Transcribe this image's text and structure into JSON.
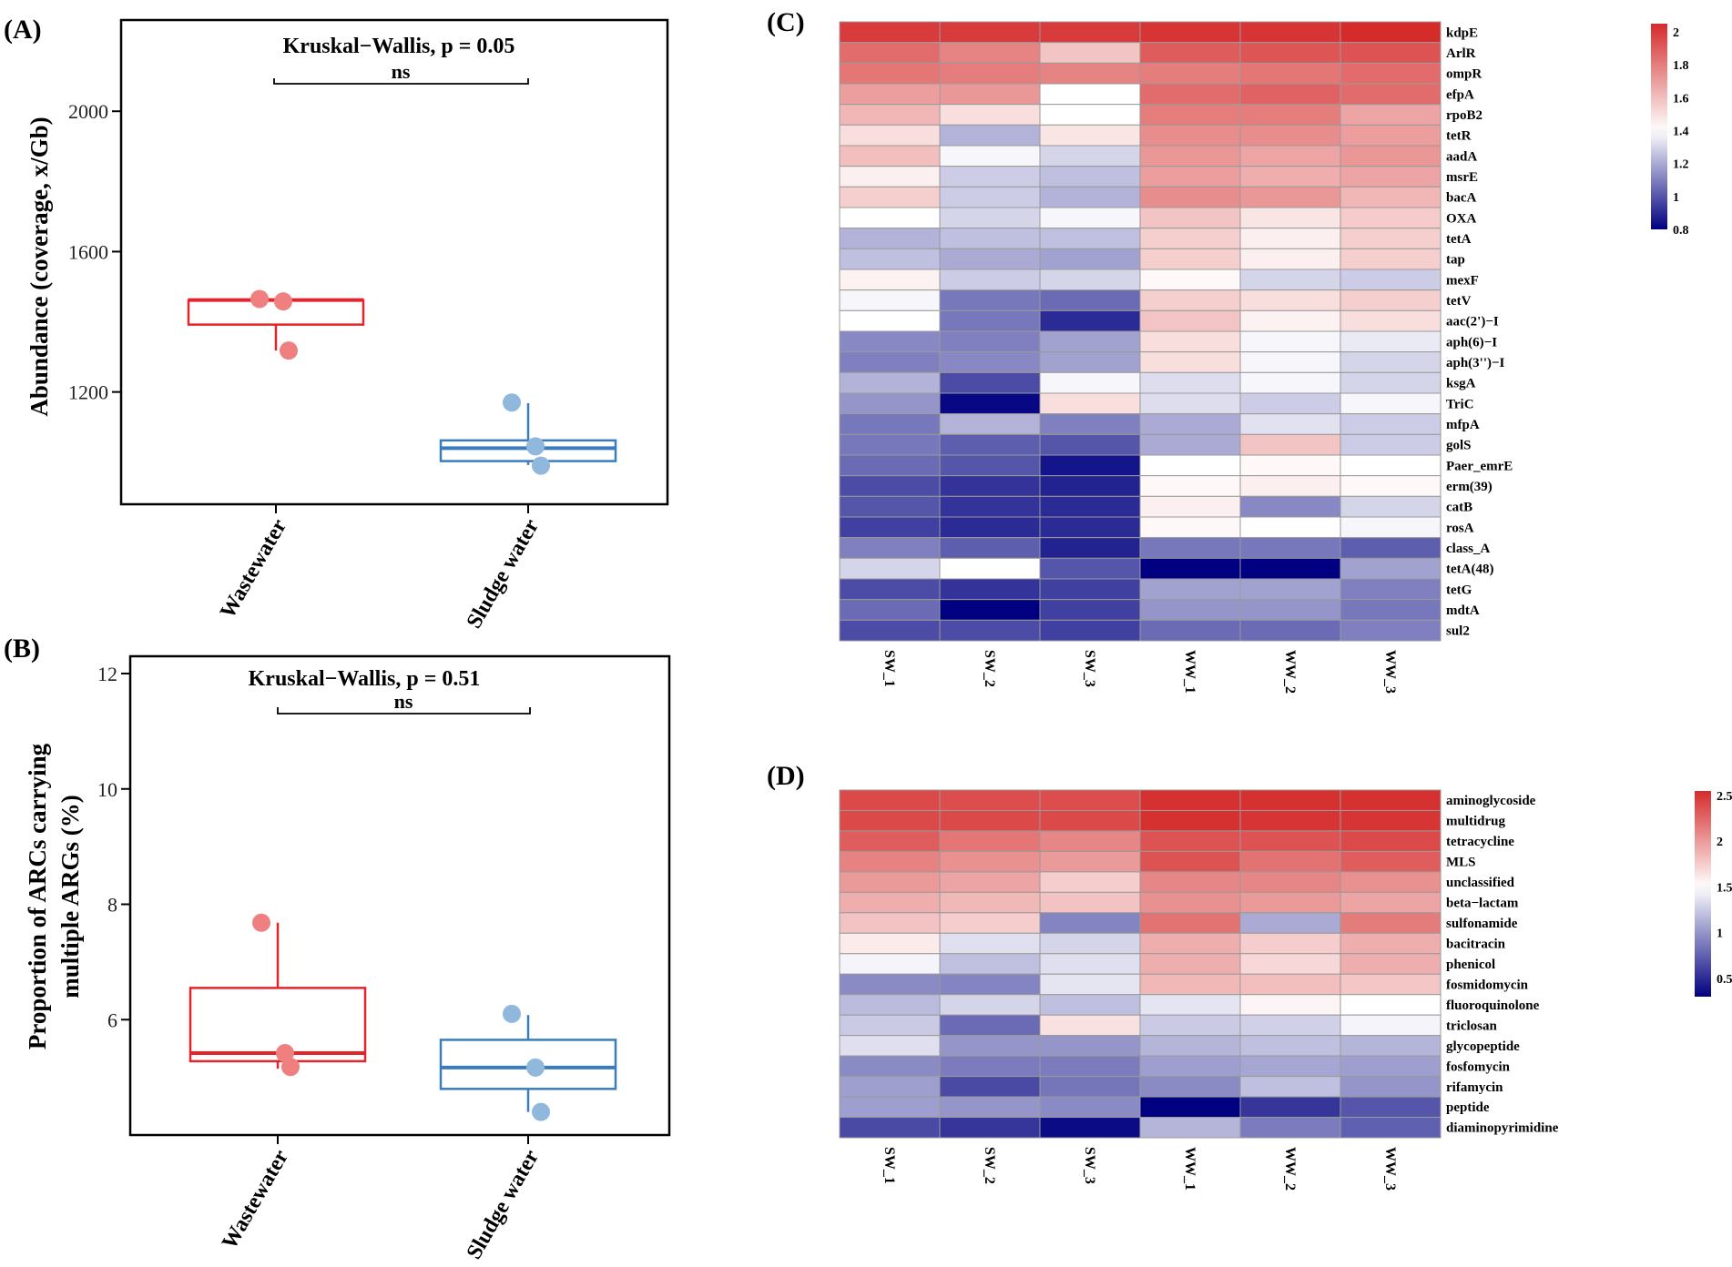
{
  "chart_data": [
    {
      "id": "A",
      "panel_label": "(A)",
      "type": "box",
      "title": "Kruskal−Wallis, p = 0.05",
      "significance": "ns",
      "ylabel": "Abundance (coverage, x/Gb)",
      "yticks": [
        1200,
        1600,
        2000
      ],
      "ylim": [
        880,
        2260
      ],
      "categories": [
        "Wastewater",
        "Sludge water"
      ],
      "colors": [
        "#e3242b",
        "#3a7dbf"
      ],
      "point_colors": [
        "#f08080",
        "#8fb8dc"
      ],
      "groups": [
        {
          "name": "Wastewater",
          "q1": 1392,
          "median": 1462,
          "q3": 1462,
          "whisker_low": 1318,
          "whisker_high": 1462,
          "points": [
            1465,
            1458,
            1318
          ]
        },
        {
          "name": "Sludge water",
          "q1": 1003,
          "median": 1040,
          "q3": 1062,
          "whisker_low": 992,
          "whisker_high": 1168,
          "points": [
            1170,
            1045,
            990
          ]
        }
      ]
    },
    {
      "id": "B",
      "panel_label": "(B)",
      "type": "box",
      "title": "Kruskal−Wallis, p = 0.51",
      "significance": "ns",
      "ylabel_lines": [
        "Proportion of ARCs carrying",
        "multiple ARGs (%)"
      ],
      "yticks": [
        6,
        8,
        10,
        12
      ],
      "ylim": [
        4.0,
        12.3
      ],
      "categories": [
        "Wastewater",
        "Sludge water"
      ],
      "colors": [
        "#e3242b",
        "#3a7dbf"
      ],
      "point_colors": [
        "#f08080",
        "#8fb8dc"
      ],
      "groups": [
        {
          "name": "Wastewater",
          "q1": 5.28,
          "median": 5.42,
          "q3": 6.55,
          "whisker_low": 5.15,
          "whisker_high": 7.68,
          "points": [
            7.68,
            5.42,
            5.18
          ]
        },
        {
          "name": "Sludge water",
          "q1": 4.8,
          "median": 5.17,
          "q3": 5.65,
          "whisker_low": 4.4,
          "whisker_high": 6.08,
          "points": [
            6.1,
            5.17,
            4.4
          ]
        }
      ]
    },
    {
      "id": "C",
      "panel_label": "(C)",
      "type": "heatmap",
      "columns": [
        "SW_1",
        "SW_2",
        "SW_3",
        "WW_1",
        "WW_2",
        "WW_3"
      ],
      "rows": [
        "kdpE",
        "ArlR",
        "ompR",
        "efpA",
        "rpoB2",
        "tetR",
        "aadA",
        "msrE",
        "bacA",
        "OXA",
        "tetA",
        "tap",
        "mexF",
        "tetV",
        "aac(2')−I",
        "aph(6)−I",
        "aph(3'')−I",
        "ksgA",
        "TriC",
        "mfpA",
        "golS",
        "Paer_emrE",
        "erm(39)",
        "catB",
        "rosA",
        "class_A",
        "tetA(48)",
        "tetG",
        "mdtA",
        "sul2"
      ],
      "values": [
        [
          2.0,
          2.0,
          2.0,
          2.02,
          2.02,
          2.05
        ],
        [
          1.85,
          1.78,
          1.58,
          1.9,
          1.92,
          1.93
        ],
        [
          1.82,
          1.8,
          1.78,
          1.8,
          1.82,
          1.85
        ],
        [
          1.7,
          1.72,
          1.4,
          1.85,
          1.88,
          1.85
        ],
        [
          1.62,
          1.5,
          1.4,
          1.8,
          1.8,
          1.68
        ],
        [
          1.5,
          1.22,
          1.48,
          1.75,
          1.75,
          1.7
        ],
        [
          1.6,
          1.38,
          1.3,
          1.72,
          1.68,
          1.72
        ],
        [
          1.45,
          1.28,
          1.25,
          1.7,
          1.65,
          1.68
        ],
        [
          1.55,
          1.28,
          1.22,
          1.75,
          1.72,
          1.62
        ],
        [
          1.4,
          1.3,
          1.38,
          1.58,
          1.48,
          1.56
        ],
        [
          1.22,
          1.25,
          1.25,
          1.55,
          1.45,
          1.55
        ],
        [
          1.25,
          1.2,
          1.18,
          1.55,
          1.45,
          1.55
        ],
        [
          1.44,
          1.28,
          1.3,
          1.42,
          1.3,
          1.28
        ],
        [
          1.38,
          1.08,
          1.05,
          1.55,
          1.5,
          1.55
        ],
        [
          1.4,
          1.08,
          0.9,
          1.58,
          1.44,
          1.5
        ],
        [
          1.12,
          1.1,
          1.18,
          1.5,
          1.38,
          1.35
        ],
        [
          1.1,
          1.12,
          1.18,
          1.5,
          1.38,
          1.3
        ],
        [
          1.22,
          0.98,
          1.38,
          1.32,
          1.38,
          1.3
        ],
        [
          1.15,
          0.82,
          1.5,
          1.32,
          1.28,
          1.38
        ],
        [
          1.08,
          1.22,
          1.1,
          1.2,
          1.33,
          1.28
        ],
        [
          1.08,
          1.02,
          1.0,
          1.2,
          1.58,
          1.28
        ],
        [
          1.05,
          1.0,
          0.85,
          1.4,
          1.42,
          1.4
        ],
        [
          0.98,
          0.92,
          0.88,
          1.42,
          1.45,
          1.42
        ],
        [
          1.0,
          0.92,
          0.9,
          1.45,
          1.12,
          1.3
        ],
        [
          0.95,
          0.9,
          0.9,
          1.42,
          1.4,
          1.38
        ],
        [
          1.1,
          1.02,
          0.88,
          1.08,
          1.08,
          1.02
        ],
        [
          1.3,
          1.4,
          1.0,
          0.8,
          0.8,
          1.18
        ],
        [
          0.98,
          0.92,
          0.95,
          1.18,
          1.18,
          1.1
        ],
        [
          1.05,
          0.8,
          0.95,
          1.15,
          1.15,
          1.08
        ],
        [
          0.98,
          0.98,
          0.95,
          1.05,
          1.05,
          1.1
        ]
      ],
      "vmin": 0.8,
      "vmax": 2.05,
      "vmid": 1.4,
      "legend_ticks": [
        2,
        1.8,
        1.6,
        1.4,
        1.2,
        1,
        0.8
      ]
    },
    {
      "id": "D",
      "panel_label": "(D)",
      "type": "heatmap",
      "columns": [
        "SW_1",
        "SW_2",
        "SW_3",
        "WW_1",
        "WW_2",
        "WW_3"
      ],
      "rows": [
        "aminoglycoside",
        "multidrug",
        "tetracycline",
        "MLS",
        "unclassified",
        "beta−lactam",
        "sulfonamide",
        "bacitracin",
        "phenicol",
        "fosmidomycin",
        "fluoroquinolone",
        "triclosan",
        "glycopeptide",
        "fosfomycin",
        "rifamycin",
        "peptide",
        "diaminopyrimidine"
      ],
      "values": [
        [
          2.4,
          2.38,
          2.38,
          2.52,
          2.52,
          2.52
        ],
        [
          2.4,
          2.4,
          2.4,
          2.52,
          2.5,
          2.5
        ],
        [
          2.3,
          2.18,
          2.1,
          2.35,
          2.35,
          2.4
        ],
        [
          2.12,
          2.05,
          2.0,
          2.35,
          2.2,
          2.3
        ],
        [
          2.0,
          1.95,
          1.75,
          2.1,
          2.1,
          2.05
        ],
        [
          1.9,
          1.85,
          1.8,
          2.05,
          2.0,
          1.95
        ],
        [
          1.8,
          1.75,
          0.92,
          2.2,
          1.1,
          2.15
        ],
        [
          1.6,
          1.35,
          1.3,
          1.9,
          1.75,
          1.9
        ],
        [
          1.45,
          1.2,
          1.35,
          1.9,
          1.7,
          1.9
        ],
        [
          0.95,
          0.92,
          1.38,
          1.85,
          1.82,
          1.78
        ],
        [
          1.18,
          1.3,
          1.2,
          1.38,
          1.55,
          1.5
        ],
        [
          1.25,
          0.8,
          1.65,
          1.25,
          1.28,
          1.45
        ],
        [
          1.35,
          1.0,
          1.0,
          1.15,
          1.2,
          1.15
        ],
        [
          0.95,
          0.88,
          0.88,
          1.05,
          1.08,
          1.05
        ],
        [
          1.05,
          0.65,
          0.85,
          0.95,
          1.2,
          1.0
        ],
        [
          1.05,
          1.0,
          0.95,
          0.3,
          0.55,
          0.7
        ],
        [
          0.65,
          0.55,
          0.35,
          1.15,
          0.88,
          0.75
        ]
      ],
      "vmin": 0.3,
      "vmax": 2.55,
      "vmid": 1.5,
      "legend_ticks": [
        2.5,
        2,
        1.5,
        1,
        0.5
      ]
    }
  ]
}
